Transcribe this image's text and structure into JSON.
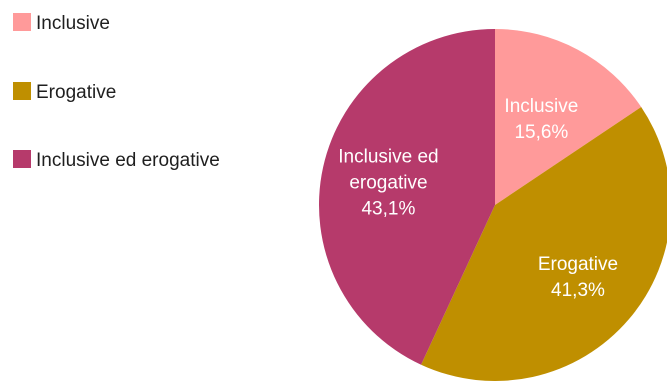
{
  "chart_data": {
    "type": "pie",
    "title": "",
    "legend_position": "top-left",
    "slices": [
      {
        "name": "Inclusive",
        "value": 15.6,
        "value_label": "15,6%",
        "label_lines": [
          "Inclusive",
          "15,6%"
        ],
        "color": "#ff9a9a"
      },
      {
        "name": "Erogative",
        "value": 41.3,
        "value_label": "41,3%",
        "label_lines": [
          "Erogative",
          "41,3%"
        ],
        "color": "#bf8f00"
      },
      {
        "name": "Inclusive ed erogative",
        "value": 43.1,
        "value_label": "43,1%",
        "label_lines": [
          "Inclusive ed",
          "erogative",
          "43,1%"
        ],
        "color": "#b63a6b"
      }
    ]
  }
}
